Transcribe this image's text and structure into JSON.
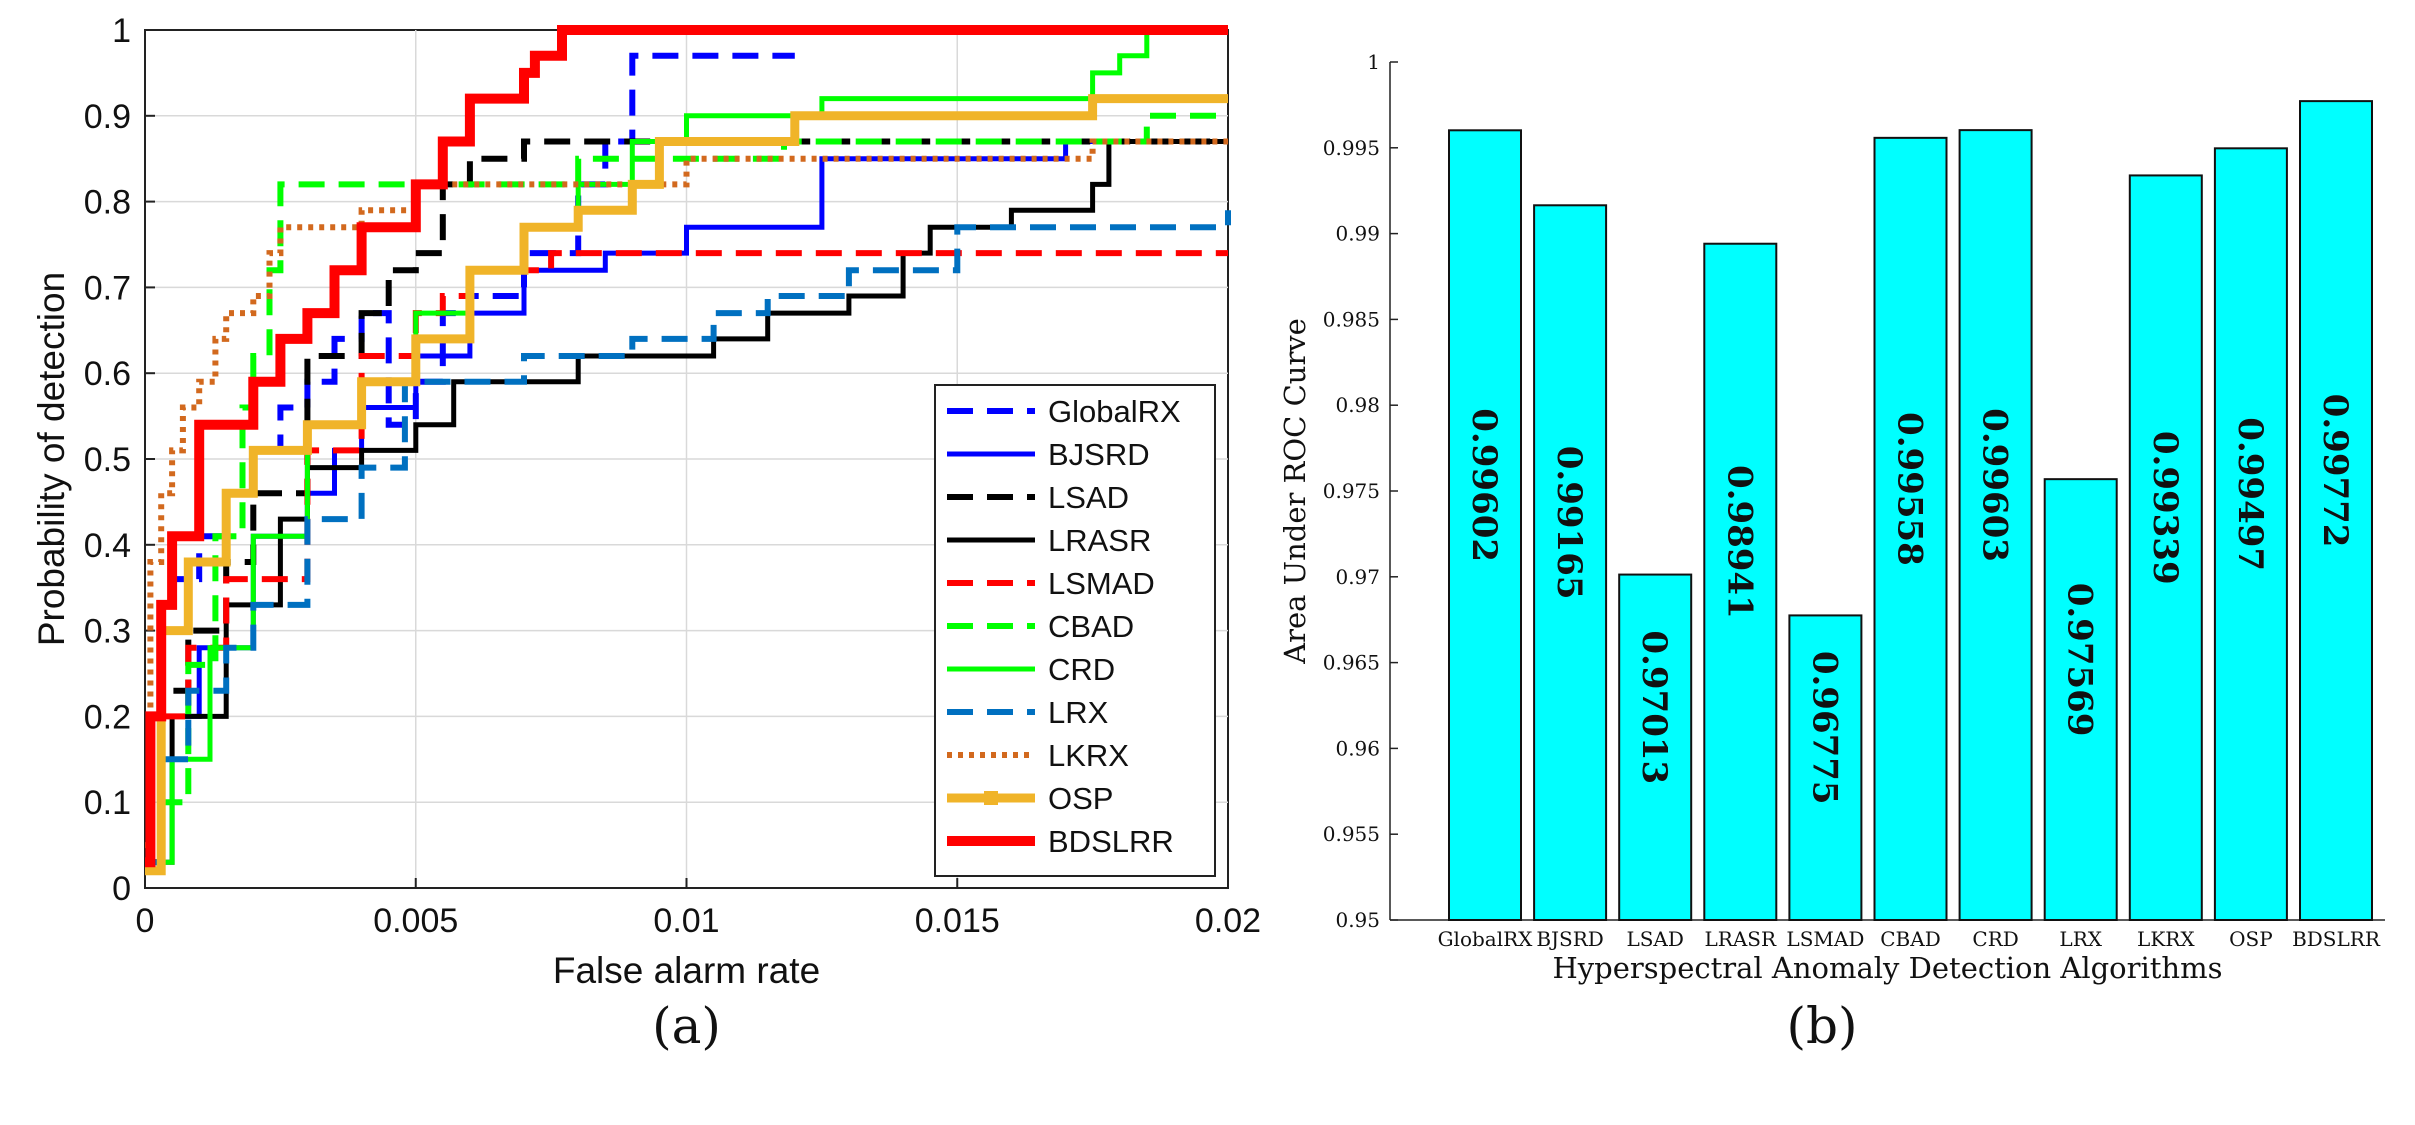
{
  "panel_labels": [
    "(a)",
    "(b)"
  ],
  "chart_data": [
    {
      "type": "line",
      "step": true,
      "xlabel": "False alarm rate",
      "ylabel": "Probability of detection",
      "xlim": [
        0,
        0.02
      ],
      "ylim": [
        0,
        1
      ],
      "xticks": [
        "0",
        "0.005",
        "0.01",
        "0.015",
        "0.02"
      ],
      "yticks": [
        "0",
        "0.1",
        "0.2",
        "0.3",
        "0.4",
        "0.5",
        "0.6",
        "0.7",
        "0.8",
        "0.9",
        "1"
      ],
      "grid": true,
      "legend_position": "bottom-right",
      "series": [
        {
          "name": "GlobalRX",
          "color": "#0000ff",
          "dash": "dashed",
          "x": [
            0,
            0.0001,
            0.0003,
            0.0005,
            0.001,
            0.0015,
            0.002,
            0.0025,
            0.003,
            0.0035,
            0.004,
            0.0045,
            0.005,
            0.0055,
            0.006,
            0.007,
            0.008,
            0.0085,
            0.009,
            0.0092,
            0.012
          ],
          "y": [
            0.05,
            0.2,
            0.33,
            0.36,
            0.41,
            0.46,
            0.51,
            0.56,
            0.59,
            0.64,
            0.67,
            0.54,
            0.59,
            0.67,
            0.69,
            0.74,
            0.82,
            0.87,
            0.97,
            0.97,
            0.97
          ]
        },
        {
          "name": "BJSRD",
          "color": "#0000ff",
          "dash": "solid",
          "x": [
            0,
            0.0003,
            0.001,
            0.002,
            0.003,
            0.0035,
            0.004,
            0.005,
            0.006,
            0.007,
            0.0085,
            0.01,
            0.0125,
            0.013,
            0.0145,
            0.017,
            0.018
          ],
          "y": [
            0.03,
            0.2,
            0.28,
            0.41,
            0.46,
            0.51,
            0.56,
            0.62,
            0.67,
            0.72,
            0.74,
            0.77,
            0.85,
            0.85,
            0.85,
            0.87,
            0.87
          ]
        },
        {
          "name": "LSAD",
          "color": "#000000",
          "dash": "dashed",
          "x": [
            0,
            0.0003,
            0.0008,
            0.0015,
            0.002,
            0.003,
            0.004,
            0.0045,
            0.005,
            0.0055,
            0.006,
            0.007,
            0.008,
            0.01,
            0.012,
            0.0175,
            0.02
          ],
          "y": [
            0.03,
            0.23,
            0.3,
            0.38,
            0.46,
            0.62,
            0.67,
            0.72,
            0.74,
            0.82,
            0.85,
            0.87,
            0.87,
            0.87,
            0.87,
            0.87,
            0.87
          ]
        },
        {
          "name": "LRASR",
          "color": "#000000",
          "dash": "solid",
          "x": [
            0,
            0.0005,
            0.0015,
            0.0025,
            0.003,
            0.004,
            0.005,
            0.0057,
            0.007,
            0.008,
            0.009,
            0.0105,
            0.0115,
            0.013,
            0.014,
            0.0145,
            0.016,
            0.0175,
            0.0178,
            0.02
          ],
          "y": [
            0.03,
            0.2,
            0.33,
            0.43,
            0.49,
            0.51,
            0.54,
            0.59,
            0.59,
            0.62,
            0.62,
            0.64,
            0.67,
            0.69,
            0.74,
            0.77,
            0.79,
            0.82,
            0.87,
            0.87
          ]
        },
        {
          "name": "LSMAD",
          "color": "#ff0000",
          "dash": "dashed",
          "x": [
            0,
            0.0003,
            0.0008,
            0.0015,
            0.003,
            0.004,
            0.005,
            0.0055,
            0.006,
            0.0075,
            0.0095,
            0.0108,
            0.0125,
            0.02
          ],
          "y": [
            0.03,
            0.2,
            0.28,
            0.36,
            0.51,
            0.62,
            0.67,
            0.69,
            0.72,
            0.74,
            0.74,
            0.74,
            0.74,
            0.74
          ]
        },
        {
          "name": "CBAD",
          "color": "#00ff00",
          "dash": "dashed",
          "x": [
            0,
            0.0003,
            0.0008,
            0.0013,
            0.0018,
            0.002,
            0.0023,
            0.0025,
            0.003,
            0.004,
            0.006,
            0.008,
            0.0118,
            0.0175,
            0.0185,
            0.02
          ],
          "y": [
            0.02,
            0.1,
            0.26,
            0.41,
            0.56,
            0.62,
            0.72,
            0.82,
            0.82,
            0.82,
            0.82,
            0.85,
            0.87,
            0.87,
            0.9,
            0.9
          ]
        },
        {
          "name": "CRD",
          "color": "#00ff00",
          "dash": "solid",
          "x": [
            0,
            0.0005,
            0.0012,
            0.002,
            0.003,
            0.004,
            0.005,
            0.006,
            0.007,
            0.008,
            0.009,
            0.01,
            0.0125,
            0.0175,
            0.018,
            0.0185
          ],
          "y": [
            0.03,
            0.15,
            0.28,
            0.41,
            0.54,
            0.59,
            0.67,
            0.72,
            0.77,
            0.82,
            0.87,
            0.9,
            0.92,
            0.95,
            0.97,
            1.0
          ]
        },
        {
          "name": "LRX",
          "color": "#0070c0",
          "dash": "dashed",
          "x": [
            0,
            0.0003,
            0.0008,
            0.0015,
            0.002,
            0.003,
            0.004,
            0.0048,
            0.007,
            0.009,
            0.0105,
            0.0115,
            0.013,
            0.015,
            0.0158,
            0.02
          ],
          "y": [
            0.03,
            0.15,
            0.23,
            0.28,
            0.33,
            0.43,
            0.49,
            0.59,
            0.62,
            0.64,
            0.67,
            0.69,
            0.72,
            0.77,
            0.77,
            0.79
          ]
        },
        {
          "name": "LKRX",
          "color": "#d2691e",
          "dash": "dotted",
          "x": [
            0,
            0.0001,
            0.0003,
            0.0005,
            0.0007,
            0.001,
            0.0013,
            0.0015,
            0.002,
            0.0023,
            0.0025,
            0.004,
            0.005,
            0.006,
            0.008,
            0.01,
            0.012,
            0.0175,
            0.02
          ],
          "y": [
            0.05,
            0.38,
            0.46,
            0.51,
            0.56,
            0.59,
            0.64,
            0.67,
            0.69,
            0.74,
            0.77,
            0.79,
            0.82,
            0.82,
            0.82,
            0.85,
            0.85,
            0.87,
            0.87
          ]
        },
        {
          "name": "OSP",
          "color": "#f0b429",
          "dash": "solid-marker",
          "x": [
            0,
            0.0003,
            0.0008,
            0.0015,
            0.002,
            0.003,
            0.004,
            0.005,
            0.006,
            0.007,
            0.008,
            0.009,
            0.0095,
            0.012,
            0.0175,
            0.02
          ],
          "y": [
            0.02,
            0.3,
            0.38,
            0.46,
            0.51,
            0.54,
            0.59,
            0.64,
            0.72,
            0.77,
            0.79,
            0.82,
            0.87,
            0.9,
            0.92,
            0.92
          ]
        },
        {
          "name": "BDSLRR",
          "color": "#ff0000",
          "dash": "solid-thick",
          "x": [
            0,
            0.0001,
            0.0003,
            0.0005,
            0.001,
            0.0015,
            0.002,
            0.0025,
            0.003,
            0.0035,
            0.004,
            0.0045,
            0.005,
            0.0055,
            0.006,
            0.007,
            0.0072,
            0.0077,
            0.02
          ],
          "y": [
            0.03,
            0.2,
            0.33,
            0.41,
            0.54,
            0.54,
            0.59,
            0.64,
            0.67,
            0.72,
            0.77,
            0.77,
            0.82,
            0.87,
            0.92,
            0.95,
            0.97,
            1.0,
            1.0
          ]
        }
      ]
    },
    {
      "type": "bar",
      "xlabel": "Hyperspectral Anomaly Detection Algorithms",
      "ylabel": "Area Under ROC Curve",
      "ylim": [
        0.95,
        1
      ],
      "yticks": [
        "0.95",
        "0.955",
        "0.96",
        "0.965",
        "0.97",
        "0.975",
        "0.98",
        "0.985",
        "0.99",
        "0.995",
        "1"
      ],
      "bar_color": "#00ffff",
      "categories": [
        "GlobalRX",
        "BJSRD",
        "LSAD",
        "LRASR",
        "LSMAD",
        "CBAD",
        "CRD",
        "LRX",
        "LKRX",
        "OSP",
        "BDSLRR"
      ],
      "values": [
        0.99602,
        0.99165,
        0.97013,
        0.98941,
        0.96775,
        0.99558,
        0.99603,
        0.97569,
        0.99339,
        0.99497,
        0.99772
      ],
      "value_labels": [
        "0.99602",
        "0.99165",
        "0.97013",
        "0.98941",
        "0.96775",
        "0.99558",
        "0.99603",
        "0.97569",
        "0.99339",
        "0.99497",
        "0.99772"
      ]
    }
  ]
}
